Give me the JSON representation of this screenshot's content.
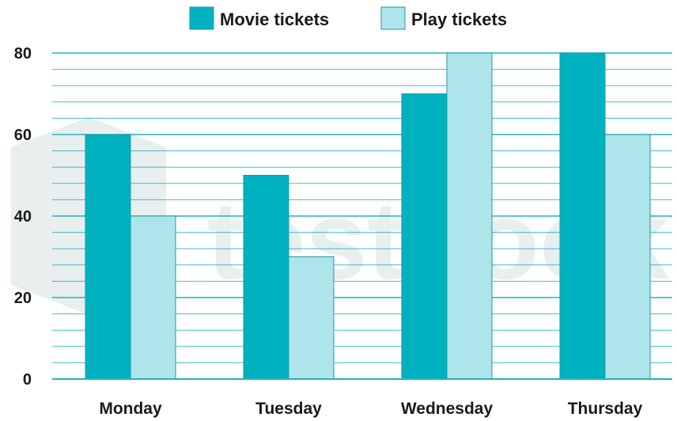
{
  "colors": {
    "series_0": "#00b2c0",
    "series_1": "#aee5ea",
    "gridline": "#1fb4c2",
    "bar_edge": "#1a9aa6",
    "watermark": "#e9eeef"
  },
  "watermark_text": "testbook",
  "chart_data": {
    "type": "bar",
    "categories": [
      "Monday",
      "Tuesday",
      "Wednesday",
      "Thursday"
    ],
    "series": [
      {
        "name": "Movie tickets",
        "values": [
          60,
          50,
          70,
          80
        ]
      },
      {
        "name": "Play tickets",
        "values": [
          40,
          30,
          80,
          60
        ]
      }
    ],
    "ylim": [
      0,
      80
    ],
    "yticks": [
      0,
      20,
      40,
      60,
      80
    ],
    "minor_step": 4,
    "grid": true,
    "legend_position": "top",
    "title": "",
    "xlabel": "",
    "ylabel": ""
  }
}
